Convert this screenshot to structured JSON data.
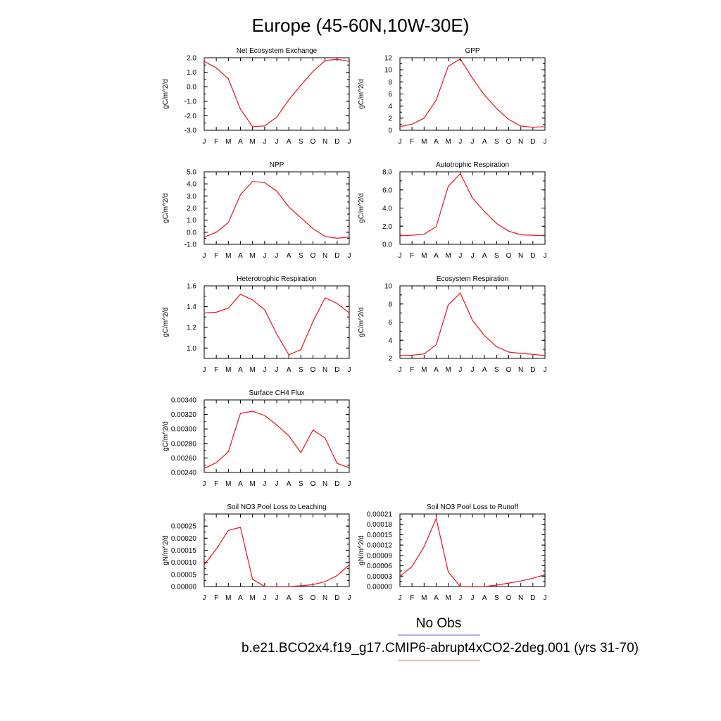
{
  "page_title": "Europe (45-60N,10W-30E)",
  "months": [
    "J",
    "F",
    "M",
    "A",
    "M",
    "J",
    "J",
    "A",
    "S",
    "O",
    "N",
    "D",
    "J"
  ],
  "legend": {
    "items": [
      {
        "label": "No Obs",
        "color": "#8080e0"
      },
      {
        "label": "b.e21.BCO2x4.f19_g17.CMIP6-abrupt4xCO2-2deg.001 (yrs 31-70)",
        "color": "#ff8080"
      }
    ]
  },
  "colors": {
    "series": "#e8131b",
    "frame": "#000000"
  },
  "chart_data": [
    {
      "type": "line",
      "title": "Net Ecosystem Exchange",
      "ylabel": "gC/m^2/d",
      "ylim": [
        -3,
        2
      ],
      "yticks": [
        -3,
        -2,
        -1,
        0,
        1,
        2
      ],
      "ytick_labels": [
        "-3.0",
        "-2.0",
        "-1.0",
        "0.0",
        "1.0",
        "2.0"
      ],
      "values": [
        1.75,
        1.3,
        0.55,
        -1.55,
        -2.75,
        -2.7,
        -2.1,
        -0.9,
        0.1,
        1.05,
        1.8,
        1.9,
        1.75
      ]
    },
    {
      "type": "line",
      "title": "GPP",
      "ylabel": "gC/m^2/d",
      "ylim": [
        0,
        12
      ],
      "yticks": [
        0,
        2,
        4,
        6,
        8,
        10,
        12
      ],
      "ytick_labels": [
        "0",
        "2",
        "4",
        "6",
        "8",
        "10",
        "12"
      ],
      "values": [
        0.6,
        1.0,
        2.0,
        5.0,
        10.6,
        11.8,
        8.6,
        5.8,
        3.6,
        1.8,
        0.7,
        0.5,
        0.6
      ]
    },
    {
      "type": "line",
      "title": "NPP",
      "ylabel": "gC/m^2/d",
      "ylim": [
        -1,
        5
      ],
      "yticks": [
        -1,
        0,
        1,
        2,
        3,
        4,
        5
      ],
      "ytick_labels": [
        "-1.0",
        "0.0",
        "1.0",
        "2.0",
        "3.0",
        "4.0",
        "5.0"
      ],
      "values": [
        -0.4,
        0.0,
        0.8,
        3.1,
        4.2,
        4.1,
        3.4,
        2.1,
        1.2,
        0.3,
        -0.35,
        -0.5,
        -0.4
      ]
    },
    {
      "type": "line",
      "title": "Autotrophic Respiration",
      "ylabel": "gC/m^2/d",
      "ylim": [
        0,
        8
      ],
      "yticks": [
        0,
        2,
        4,
        6,
        8
      ],
      "ytick_labels": [
        "0.0",
        "2.0",
        "4.0",
        "6.0",
        "8.0"
      ],
      "values": [
        0.95,
        1.0,
        1.1,
        1.95,
        6.4,
        7.8,
        5.1,
        3.6,
        2.3,
        1.45,
        1.05,
        1.0,
        0.95
      ]
    },
    {
      "type": "line",
      "title": "Heterotrophic Respiration",
      "ylabel": "gC/m^2/d",
      "ylim": [
        0.9,
        1.6
      ],
      "yticks": [
        1.0,
        1.2,
        1.4,
        1.6
      ],
      "ytick_labels": [
        "1.0",
        "1.2",
        "1.4",
        "1.6"
      ],
      "values": [
        1.34,
        1.345,
        1.385,
        1.52,
        1.465,
        1.37,
        1.135,
        0.935,
        0.985,
        1.255,
        1.485,
        1.43,
        1.34
      ]
    },
    {
      "type": "line",
      "title": "Ecosystem Respiration",
      "ylabel": "gC/m^2/d",
      "ylim": [
        2,
        10
      ],
      "yticks": [
        2,
        4,
        6,
        8,
        10
      ],
      "ytick_labels": [
        "2",
        "4",
        "6",
        "8",
        "10"
      ],
      "values": [
        2.3,
        2.35,
        2.5,
        3.5,
        7.9,
        9.2,
        6.2,
        4.5,
        3.3,
        2.7,
        2.55,
        2.45,
        2.3
      ]
    },
    {
      "type": "line",
      "title": "Surface CH4 Flux",
      "ylabel": "gC/m^2/d",
      "ylim": [
        0.0024,
        0.0034
      ],
      "yticks": [
        0.0024,
        0.0026,
        0.0028,
        0.003,
        0.0032,
        0.0034
      ],
      "ytick_labels": [
        "0.00240",
        "0.00260",
        "0.00280",
        "0.00300",
        "0.00320",
        "0.00340"
      ],
      "values": [
        0.002455,
        0.002535,
        0.002685,
        0.003215,
        0.003245,
        0.003185,
        0.003055,
        0.002905,
        0.002675,
        0.002985,
        0.002875,
        0.002525,
        0.002465
      ]
    },
    {
      "type": "line",
      "title": "Soil NO3 Pool Loss to Leaching",
      "ylabel": "gN/m^2/d",
      "ylim": [
        0,
        0.0003
      ],
      "yticks": [
        0,
        5e-05,
        0.0001,
        0.00015,
        0.0002,
        0.00025
      ],
      "ytick_labels": [
        "0.00000",
        "0.00005",
        "0.00010",
        "0.00015",
        "0.00020",
        "0.00025"
      ],
      "values": [
        9e-05,
        0.000155,
        0.000232,
        0.000245,
        3e-05,
        0.0,
        0.0,
        0.0,
        3e-06,
        8e-06,
        2e-05,
        4.5e-05,
        9e-05
      ]
    },
    {
      "type": "line",
      "title": "Soil NO3 Pool Loss to Runoff",
      "ylabel": "gN/m^2/d",
      "ylim": [
        0,
        0.00021
      ],
      "yticks": [
        0,
        3e-05,
        6e-05,
        9e-05,
        0.00012,
        0.00015,
        0.00018,
        0.00021
      ],
      "ytick_labels": [
        "0.00000",
        "0.00003",
        "0.00006",
        "0.00009",
        "0.00012",
        "0.00015",
        "0.00018",
        "0.00021"
      ],
      "values": [
        3e-05,
        5.8e-05,
        0.000115,
        0.000197,
        4.2e-05,
        0.0,
        0.0,
        0.0,
        4e-06,
        1e-05,
        1.6e-05,
        2.4e-05,
        3.4e-05
      ]
    }
  ]
}
